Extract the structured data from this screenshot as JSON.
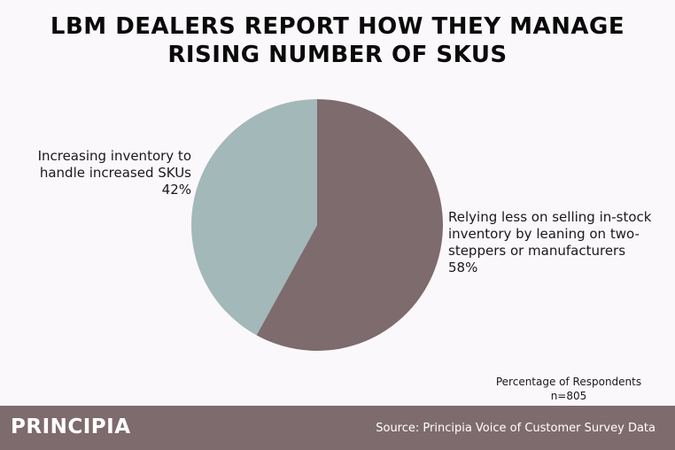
{
  "title_line1": "LBM DEALERS REPORT HOW THEY MANAGE",
  "title_line2": "RISING NUMBER OF SKUS",
  "chart_data": {
    "type": "pie",
    "slices": [
      {
        "label_lines": [
          "Relying less on selling in-stock",
          "inventory by leaning on two-",
          "steppers or manufacturers"
        ],
        "value": 58,
        "display": "58%",
        "color": "#7e6b6d"
      },
      {
        "label_lines": [
          "Increasing inventory to",
          "handle increased SKUs"
        ],
        "value": 42,
        "display": "42%",
        "color": "#a3b8b9"
      }
    ]
  },
  "note_line1": "Percentage of Respondents",
  "note_line2": "n=805",
  "footer": {
    "brand": "PRINCIPIA",
    "source": "Source: Principia Voice of Customer Survey Data"
  }
}
